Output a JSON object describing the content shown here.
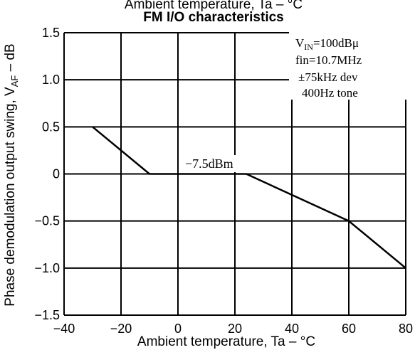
{
  "chart_data": {
    "type": "line",
    "title_top": "Ambient temperature, Ta – °C",
    "title": "FM I/O characteristics",
    "xlabel": "Ambient temperature, Ta – °C",
    "ylabel": "Phase demodulation output swing, V",
    "ylabel_sub": "AF",
    "ylabel_unit": " – dB",
    "xlim": [
      -40,
      80
    ],
    "ylim": [
      -1.5,
      1.5
    ],
    "x_ticks": [
      -40,
      -20,
      0,
      20,
      40,
      60,
      80
    ],
    "x_tick_labels": [
      "−40",
      "−20",
      "0",
      "20",
      "40",
      "60",
      "80"
    ],
    "y_ticks": [
      1.5,
      1.0,
      0.5,
      0,
      -0.5,
      -1.0,
      -1.5
    ],
    "y_tick_labels": [
      "1.5",
      "1.0",
      "0.5",
      "0",
      "−0.5",
      "−1.0",
      "−1.5"
    ],
    "grid": true,
    "series": [
      {
        "x": [
          -30,
          -10,
          24,
          60,
          80
        ],
        "y": [
          0.5,
          0.0,
          0.0,
          -0.5,
          -1.0
        ]
      }
    ],
    "annotations": {
      "level": "−7.5dBm",
      "cond_vin_main": "V",
      "cond_vin_sub": "IN",
      "cond_vin_rest": "=100dBμ",
      "cond_fin": "fin=10.7MHz",
      "cond_dev": "±75kHz dev",
      "cond_tone": "400Hz tone"
    }
  }
}
